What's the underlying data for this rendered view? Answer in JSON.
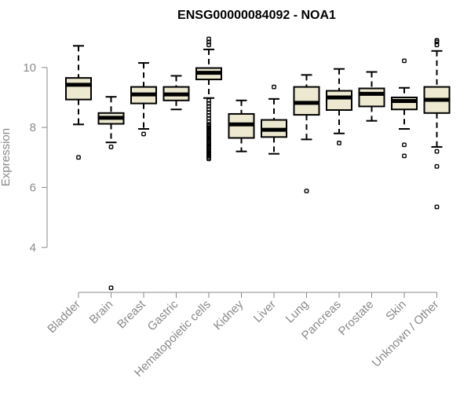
{
  "chart_data": {
    "type": "box",
    "title": "ENSG00000084092 - NOA1",
    "xlabel": "",
    "ylabel": "Expression",
    "ylim": [
      2.5,
      11.2
    ],
    "yticks": [
      4,
      6,
      8,
      10
    ],
    "colors": {
      "box_fill": "#ede8d0",
      "stroke": "#000000",
      "axis": "#8a8a8a"
    },
    "categories": [
      "Bladder",
      "Brain",
      "Breast",
      "Gastric",
      "Hematopoietic cells",
      "Kidney",
      "Liver",
      "Lung",
      "Pancreas",
      "Prostate",
      "Skin",
      "Unknown / Other"
    ],
    "boxes": [
      {
        "category": "Bladder",
        "whisker_low": 8.1,
        "q1": 8.93,
        "median": 9.42,
        "q3": 9.65,
        "whisker_high": 10.72,
        "outliers": [
          7.0
        ]
      },
      {
        "category": "Brain",
        "whisker_low": 7.5,
        "q1": 8.12,
        "median": 8.32,
        "q3": 8.48,
        "whisker_high": 9.02,
        "outliers": [
          7.35,
          2.65
        ]
      },
      {
        "category": "Breast",
        "whisker_low": 7.95,
        "q1": 8.8,
        "median": 9.1,
        "q3": 9.35,
        "whisker_high": 10.15,
        "outliers": [
          7.78
        ]
      },
      {
        "category": "Gastric",
        "whisker_low": 8.6,
        "q1": 8.9,
        "median": 9.1,
        "q3": 9.35,
        "whisker_high": 9.72,
        "outliers": []
      },
      {
        "category": "Hematopoietic cells",
        "whisker_low": 8.98,
        "q1": 9.6,
        "median": 9.82,
        "q3": 9.98,
        "whisker_high": 10.6,
        "outliers": [
          10.75,
          10.85,
          10.95,
          8.9,
          8.8,
          8.7,
          8.6,
          8.5,
          8.4,
          8.3,
          8.2,
          8.1,
          8.05,
          8.0,
          7.95,
          7.9,
          7.85,
          7.8,
          7.75,
          7.7,
          7.65,
          7.6,
          7.55,
          7.5,
          7.45,
          7.4,
          7.35,
          7.3,
          7.25,
          7.2,
          7.15,
          7.1,
          7.05,
          7.0,
          6.95
        ]
      },
      {
        "category": "Kidney",
        "whisker_low": 7.2,
        "q1": 7.65,
        "median": 8.1,
        "q3": 8.45,
        "whisker_high": 8.9,
        "outliers": []
      },
      {
        "category": "Liver",
        "whisker_low": 7.12,
        "q1": 7.68,
        "median": 7.92,
        "q3": 8.25,
        "whisker_high": 8.95,
        "outliers": [
          9.35
        ]
      },
      {
        "category": "Lung",
        "whisker_low": 7.6,
        "q1": 8.42,
        "median": 8.82,
        "q3": 9.35,
        "whisker_high": 9.75,
        "outliers": [
          5.88
        ]
      },
      {
        "category": "Pancreas",
        "whisker_low": 7.8,
        "q1": 8.58,
        "median": 9.0,
        "q3": 9.22,
        "whisker_high": 9.95,
        "outliers": [
          7.48
        ]
      },
      {
        "category": "Prostate",
        "whisker_low": 8.22,
        "q1": 8.7,
        "median": 9.12,
        "q3": 9.3,
        "whisker_high": 9.85,
        "outliers": []
      },
      {
        "category": "Skin",
        "whisker_low": 7.95,
        "q1": 8.6,
        "median": 8.88,
        "q3": 9.0,
        "whisker_high": 9.32,
        "outliers": [
          10.22,
          7.42,
          7.05
        ]
      },
      {
        "category": "Unknown / Other",
        "whisker_low": 7.35,
        "q1": 8.48,
        "median": 8.92,
        "q3": 9.35,
        "whisker_high": 10.55,
        "outliers": [
          10.75,
          10.85,
          10.9,
          7.2,
          6.7,
          5.35
        ]
      }
    ]
  }
}
